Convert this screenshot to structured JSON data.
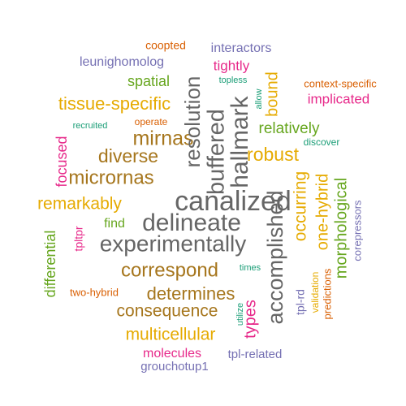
{
  "palette": {
    "green": "#1B9E77",
    "orange": "#D95F02",
    "purple": "#7570B3",
    "magenta": "#E7298A",
    "lime": "#66A61E",
    "gold": "#E6AB02",
    "brown": "#A6761D",
    "gray": "#666666"
  },
  "words": [
    {
      "id": "canalized",
      "text": "canalized",
      "color": "#666666",
      "rotated": false
    },
    {
      "id": "delineate",
      "text": "delineate",
      "color": "#666666",
      "rotated": false
    },
    {
      "id": "experimentally",
      "text": "experimentally",
      "color": "#666666",
      "rotated": false
    },
    {
      "id": "correspond",
      "text": "correspond",
      "color": "#A6761D",
      "rotated": false
    },
    {
      "id": "determines",
      "text": "determines",
      "color": "#A6761D",
      "rotated": false
    },
    {
      "id": "consequence",
      "text": "consequence",
      "color": "#A6761D",
      "rotated": false
    },
    {
      "id": "multicellular",
      "text": "multicellular",
      "color": "#E6AB02",
      "rotated": false
    },
    {
      "id": "molecules",
      "text": "molecules",
      "color": "#E7298A",
      "rotated": false
    },
    {
      "id": "tpl-related",
      "text": "tpl-related",
      "color": "#7570B3",
      "rotated": false
    },
    {
      "id": "grouchotup1",
      "text": "grouchotup1",
      "color": "#7570B3",
      "rotated": false
    },
    {
      "id": "mirnas",
      "text": "mirnas",
      "color": "#A6761D",
      "rotated": false
    },
    {
      "id": "diverse",
      "text": "diverse",
      "color": "#A6761D",
      "rotated": false
    },
    {
      "id": "micrornas",
      "text": "micrornas",
      "color": "#A6761D",
      "rotated": false
    },
    {
      "id": "remarkably",
      "text": "remarkably",
      "color": "#E6AB02",
      "rotated": false
    },
    {
      "id": "find",
      "text": "find",
      "color": "#66A61E",
      "rotated": false
    },
    {
      "id": "tissue-specific",
      "text": "tissue-specific",
      "color": "#E6AB02",
      "rotated": false
    },
    {
      "id": "spatial",
      "text": "spatial",
      "color": "#66A61E",
      "rotated": false
    },
    {
      "id": "leunighomolog",
      "text": "leunighomolog",
      "color": "#7570B3",
      "rotated": false
    },
    {
      "id": "coopted",
      "text": "coopted",
      "color": "#D95F02",
      "rotated": false
    },
    {
      "id": "interactors",
      "text": "interactors",
      "color": "#7570B3",
      "rotated": false
    },
    {
      "id": "tightly",
      "text": "tightly",
      "color": "#E7298A",
      "rotated": false
    },
    {
      "id": "topless",
      "text": "topless",
      "color": "#1B9E77",
      "rotated": false
    },
    {
      "id": "context-specific",
      "text": "context-specific",
      "color": "#D95F02",
      "rotated": false
    },
    {
      "id": "implicated",
      "text": "implicated",
      "color": "#E7298A",
      "rotated": false
    },
    {
      "id": "relatively",
      "text": "relatively",
      "color": "#66A61E",
      "rotated": false
    },
    {
      "id": "discover",
      "text": "discover",
      "color": "#1B9E77",
      "rotated": false
    },
    {
      "id": "robust",
      "text": "robust",
      "color": "#E6AB02",
      "rotated": false
    },
    {
      "id": "operate",
      "text": "operate",
      "color": "#D95F02",
      "rotated": false
    },
    {
      "id": "recruited",
      "text": "recruited",
      "color": "#1B9E77",
      "rotated": false
    },
    {
      "id": "two-hybrid",
      "text": "two-hybrid",
      "color": "#D95F02",
      "rotated": false
    },
    {
      "id": "times",
      "text": "times",
      "color": "#1B9E77",
      "rotated": false
    },
    {
      "id": "resolution",
      "text": "resolution",
      "color": "#666666",
      "rotated": true
    },
    {
      "id": "buffered",
      "text": "buffered",
      "color": "#666666",
      "rotated": true
    },
    {
      "id": "hallmark",
      "text": "hallmark",
      "color": "#666666",
      "rotated": true
    },
    {
      "id": "accomplished",
      "text": "accomplished",
      "color": "#666666",
      "rotated": true
    },
    {
      "id": "occurring",
      "text": "occurring",
      "color": "#E6AB02",
      "rotated": true
    },
    {
      "id": "one-hybrid",
      "text": "one-hybrid",
      "color": "#E6AB02",
      "rotated": true
    },
    {
      "id": "morphological",
      "text": "morphological",
      "color": "#66A61E",
      "rotated": true
    },
    {
      "id": "corepressors",
      "text": "corepressors",
      "color": "#7570B3",
      "rotated": true
    },
    {
      "id": "bound",
      "text": "bound",
      "color": "#E6AB02",
      "rotated": true
    },
    {
      "id": "allow",
      "text": "allow",
      "color": "#1B9E77",
      "rotated": true
    },
    {
      "id": "focused",
      "text": "focused",
      "color": "#E7298A",
      "rotated": true
    },
    {
      "id": "differential",
      "text": "differential",
      "color": "#66A61E",
      "rotated": true
    },
    {
      "id": "tpltpr",
      "text": "tpltpr",
      "color": "#E7298A",
      "rotated": true
    },
    {
      "id": "types",
      "text": "types",
      "color": "#E7298A",
      "rotated": true
    },
    {
      "id": "utilize",
      "text": "utilize",
      "color": "#1B9E77",
      "rotated": true
    },
    {
      "id": "tpl-rd",
      "text": "tpl-rd",
      "color": "#7570B3",
      "rotated": true
    },
    {
      "id": "validation",
      "text": "validation",
      "color": "#E6AB02",
      "rotated": true
    },
    {
      "id": "predictions",
      "text": "predictions",
      "color": "#D95F02",
      "rotated": true
    }
  ]
}
